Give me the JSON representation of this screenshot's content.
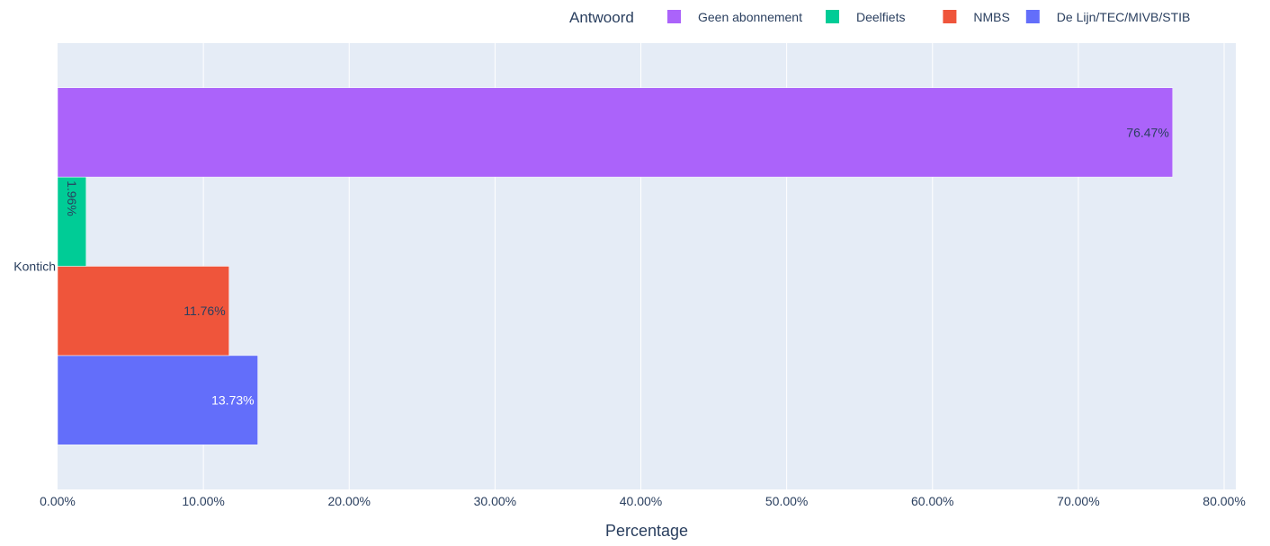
{
  "chart_data": {
    "type": "bar",
    "orientation": "horizontal",
    "categories": [
      "Kontich"
    ],
    "series": [
      {
        "name": "De Lijn/TEC/MIVB/STIB",
        "values": [
          13.73
        ],
        "label": "13.73%",
        "color": "#636efa"
      },
      {
        "name": "NMBS",
        "values": [
          11.76
        ],
        "label": "11.76%",
        "color": "#ef553b"
      },
      {
        "name": "Deelfiets",
        "values": [
          1.96
        ],
        "label": "1.96%",
        "color": "#00cc96"
      },
      {
        "name": "Geen abonnement",
        "values": [
          76.47
        ],
        "label": "76.47%",
        "color": "#ab63fa"
      }
    ],
    "xlabel": "Percentage",
    "ylabel": "",
    "xlim": [
      0,
      80.8
    ],
    "xticks": [
      0,
      10,
      20,
      30,
      40,
      50,
      60,
      70,
      80
    ],
    "xtick_labels": [
      "0.00%",
      "10.00%",
      "20.00%",
      "30.00%",
      "40.00%",
      "50.00%",
      "60.00%",
      "70.00%",
      "80.00%"
    ],
    "legend": {
      "title": "Antwoord",
      "placement": "top-right, horizontal",
      "order": [
        "Geen abonnement",
        "Deelfiets",
        "NMBS",
        "De Lijn/TEC/MIVB/STIB"
      ]
    },
    "grid": true,
    "plot_background": "#e5ecf6"
  }
}
